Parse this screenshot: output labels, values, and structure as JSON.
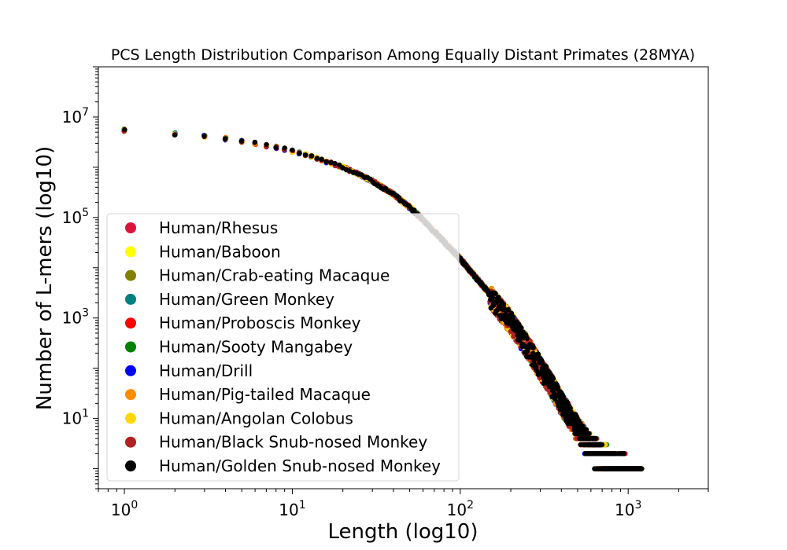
{
  "chart_data": {
    "type": "scatter",
    "title": "PCS Length Distribution Comparison Among Equally Distant Primates (28MYA)",
    "xlabel": "Length (log10)",
    "ylabel": "Number of L-mers (log10)",
    "xscale": "log",
    "yscale": "log",
    "xlim": [
      0.7,
      3000
    ],
    "ylim": [
      0.4,
      100000000
    ],
    "grid": false,
    "legend_position": "lower-left",
    "x_ticks": [
      {
        "value": 1,
        "base": "10",
        "exp": "0"
      },
      {
        "value": 10,
        "base": "10",
        "exp": "1"
      },
      {
        "value": 100,
        "base": "10",
        "exp": "2"
      },
      {
        "value": 1000,
        "base": "10",
        "exp": "3"
      }
    ],
    "y_ticks": [
      {
        "value": 10,
        "base": "10",
        "exp": "1"
      },
      {
        "value": 1000,
        "base": "10",
        "exp": "3"
      },
      {
        "value": 100000,
        "base": "10",
        "exp": "5"
      },
      {
        "value": 10000000,
        "base": "10",
        "exp": "7"
      }
    ],
    "distribution": {
      "x": [
        1,
        2,
        3,
        4,
        5,
        6,
        7,
        8,
        9,
        10,
        12,
        15,
        20,
        25,
        30,
        40,
        50,
        60,
        80,
        100,
        150,
        200,
        250,
        300,
        350,
        400,
        450,
        500,
        600,
        700,
        800,
        1000,
        1200
      ],
      "y": [
        5500000,
        4600000,
        4100000,
        3700000,
        3300000,
        3000000,
        2700000,
        2500000,
        2300000,
        2100000,
        1800000,
        1400000,
        1000000,
        720000,
        530000,
        290000,
        160000,
        90000,
        33000,
        15000,
        3000,
        900,
        300,
        110,
        50,
        22,
        12,
        7,
        3,
        2,
        1.5,
        1,
        1
      ]
    },
    "series": [
      {
        "name": "Human/Rhesus",
        "color": "#dc143c"
      },
      {
        "name": "Human/Baboon",
        "color": "#ffff00"
      },
      {
        "name": "Human/Crab-eating Macaque",
        "color": "#808000"
      },
      {
        "name": "Human/Green Monkey",
        "color": "#008080"
      },
      {
        "name": "Human/Proboscis Monkey",
        "color": "#ff0000"
      },
      {
        "name": "Human/Sooty Mangabey",
        "color": "#008000"
      },
      {
        "name": "Human/Drill",
        "color": "#0000ff"
      },
      {
        "name": "Human/Pig-tailed Macaque",
        "color": "#ff8c00"
      },
      {
        "name": "Human/Angolan Colobus",
        "color": "#ffd700"
      },
      {
        "name": "Human/Black Snub-nosed Monkey",
        "color": "#b22222"
      },
      {
        "name": "Human/Golden Snub-nosed Monkey",
        "color": "#000000"
      }
    ]
  }
}
